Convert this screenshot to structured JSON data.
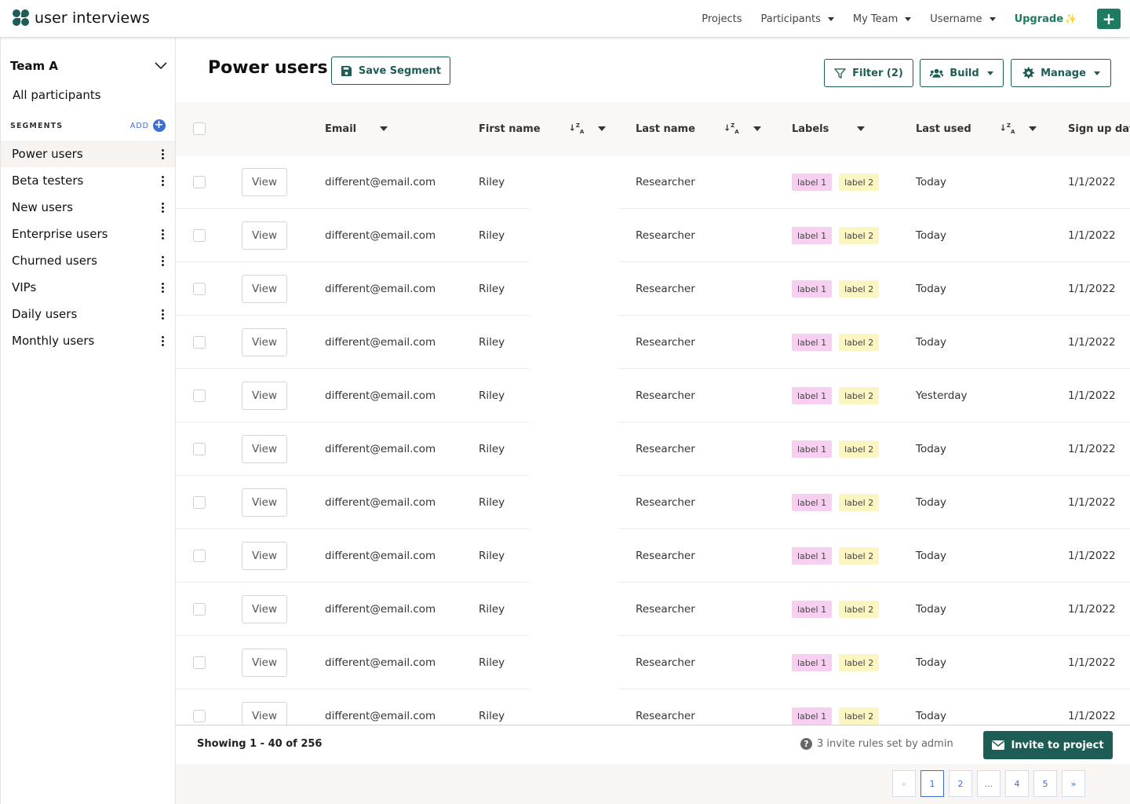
{
  "app": {
    "logo_text": "user interviews"
  },
  "topnav": {
    "projects": "Projects",
    "participants": "Participants",
    "my_team": "My Team",
    "username": "Username",
    "upgrade": "Upgrade",
    "new_button": "+"
  },
  "sidebar": {
    "team": "Team A",
    "all_participants": "All participants",
    "segments_title": "SEGMENTS",
    "add_label": "ADD",
    "segments": [
      {
        "label": "Power users",
        "active": true
      },
      {
        "label": "Beta testers",
        "active": false
      },
      {
        "label": "New users",
        "active": false
      },
      {
        "label": "Enterprise users",
        "active": false
      },
      {
        "label": "Churned users",
        "active": false
      },
      {
        "label": "VIPs",
        "active": false
      },
      {
        "label": "Daily users",
        "active": false
      },
      {
        "label": "Monthly users",
        "active": false
      }
    ]
  },
  "header": {
    "title": "Power users",
    "save_segment": "Save Segment",
    "filter": "Filter (2)",
    "build": "Build",
    "manage": "Manage"
  },
  "table": {
    "columns": {
      "email": "Email",
      "first_name": "First name",
      "last_name": "Last name",
      "labels": "Labels",
      "last_used": "Last used",
      "sign_up_date": "Sign up date"
    },
    "view_label": "View",
    "rows": [
      {
        "email": "different@email.com",
        "first_name": "Riley",
        "last_name": "Researcher",
        "labels": [
          "label 1",
          "label 2"
        ],
        "last_used": "Today",
        "sign_up": "1/1/2022"
      },
      {
        "email": "different@email.com",
        "first_name": "Riley",
        "last_name": "Researcher",
        "labels": [
          "label 1",
          "label 2"
        ],
        "last_used": "Today",
        "sign_up": "1/1/2022"
      },
      {
        "email": "different@email.com",
        "first_name": "Riley",
        "last_name": "Researcher",
        "labels": [
          "label 1",
          "label 2"
        ],
        "last_used": "Today",
        "sign_up": "1/1/2022"
      },
      {
        "email": "different@email.com",
        "first_name": "Riley",
        "last_name": "Researcher",
        "labels": [
          "label 1",
          "label 2"
        ],
        "last_used": "Today",
        "sign_up": "1/1/2022"
      },
      {
        "email": "different@email.com",
        "first_name": "Riley",
        "last_name": "Researcher",
        "labels": [
          "label 1",
          "label 2"
        ],
        "last_used": "Yesterday",
        "sign_up": "1/1/2022"
      },
      {
        "email": "different@email.com",
        "first_name": "Riley",
        "last_name": "Researcher",
        "labels": [
          "label 1",
          "label 2"
        ],
        "last_used": "Today",
        "sign_up": "1/1/2022"
      },
      {
        "email": "different@email.com",
        "first_name": "Riley",
        "last_name": "Researcher",
        "labels": [
          "label 1",
          "label 2"
        ],
        "last_used": "Today",
        "sign_up": "1/1/2022"
      },
      {
        "email": "different@email.com",
        "first_name": "Riley",
        "last_name": "Researcher",
        "labels": [
          "label 1",
          "label 2"
        ],
        "last_used": "Today",
        "sign_up": "1/1/2022"
      },
      {
        "email": "different@email.com",
        "first_name": "Riley",
        "last_name": "Researcher",
        "labels": [
          "label 1",
          "label 2"
        ],
        "last_used": "Today",
        "sign_up": "1/1/2022"
      },
      {
        "email": "different@email.com",
        "first_name": "Riley",
        "last_name": "Researcher",
        "labels": [
          "label 1",
          "label 2"
        ],
        "last_used": "Today",
        "sign_up": "1/1/2022"
      },
      {
        "email": "different@email.com",
        "first_name": "Riley",
        "last_name": "Researcher",
        "labels": [
          "label 1",
          "label 2"
        ],
        "last_used": "Today",
        "sign_up": "1/1/2022"
      }
    ]
  },
  "footer": {
    "showing": "Showing 1 - 40 of 256",
    "invite_rules": "3 invite rules set by admin",
    "invite_button": "Invite to project"
  },
  "pagination": {
    "first": "«",
    "pages": [
      "1",
      "2",
      "...",
      "4",
      "5"
    ],
    "current": "1",
    "last": "»"
  },
  "colors": {
    "brand": "#1d5d55",
    "upgrade": "#1f7a63",
    "link": "#3a6fd8",
    "label_1": "#f7cff0",
    "label_2": "#fbf5c2"
  }
}
